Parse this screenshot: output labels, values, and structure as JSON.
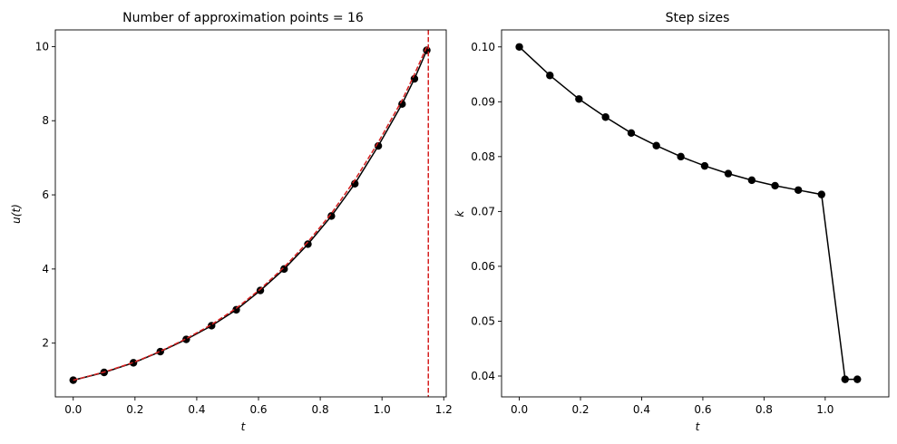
{
  "chart_data": [
    {
      "type": "line",
      "title": "Number of approximation points = 16",
      "xlabel": "t",
      "ylabel": "u(t)",
      "xlim": [
        -0.058,
        1.208
      ],
      "ylim": [
        0.55,
        10.45
      ],
      "xticks": [
        0.0,
        0.2,
        0.4,
        0.6,
        0.8,
        1.0,
        1.2
      ],
      "xtick_labels": [
        "0.0",
        "0.2",
        "0.4",
        "0.6",
        "0.8",
        "1.0",
        "1.2"
      ],
      "yticks": [
        2,
        4,
        6,
        8,
        10
      ],
      "ytick_labels": [
        "2",
        "4",
        "6",
        "8",
        "10"
      ],
      "grid": false,
      "series": [
        {
          "style": "line+markers",
          "color": "#000000",
          "x": [
            0.0,
            0.1,
            0.195,
            0.282,
            0.366,
            0.448,
            0.528,
            0.606,
            0.683,
            0.76,
            0.836,
            0.912,
            0.988,
            1.065,
            1.105,
            1.145
          ],
          "y": [
            1.0,
            1.21,
            1.47,
            1.77,
            2.1,
            2.47,
            2.9,
            3.42,
            4.0,
            4.67,
            5.43,
            6.3,
            7.32,
            8.45,
            9.13,
            9.9
          ]
        },
        {
          "style": "dashed",
          "color": "#d62020",
          "x": [
            0.0,
            0.1,
            0.195,
            0.282,
            0.366,
            0.448,
            0.528,
            0.606,
            0.683,
            0.76,
            0.836,
            0.912,
            0.988,
            1.065,
            1.105,
            1.145
          ],
          "y": [
            1.0,
            1.22,
            1.48,
            1.78,
            2.12,
            2.5,
            2.94,
            3.46,
            4.05,
            4.73,
            5.5,
            6.4,
            7.42,
            8.55,
            9.25,
            10.0
          ]
        }
      ],
      "vline": {
        "x": 1.15,
        "color": "#d62020",
        "style": "dashed"
      }
    },
    {
      "type": "line",
      "title": "Step sizes",
      "xlabel": "t",
      "ylabel": "k",
      "xlim": [
        -0.058,
        1.208
      ],
      "ylim": [
        0.0362,
        0.1031
      ],
      "xticks": [
        0.0,
        0.2,
        0.4,
        0.6,
        0.8,
        1.0
      ],
      "xtick_labels": [
        "0.0",
        "0.2",
        "0.4",
        "0.6",
        "0.8",
        "1.0"
      ],
      "yticks": [
        0.04,
        0.05,
        0.06,
        0.07,
        0.08,
        0.09,
        0.1
      ],
      "ytick_labels": [
        "0.04",
        "0.05",
        "0.06",
        "0.07",
        "0.08",
        "0.09",
        "0.10"
      ],
      "grid": false,
      "series": [
        {
          "style": "line+markers",
          "color": "#000000",
          "x": [
            0.0,
            0.1,
            0.195,
            0.282,
            0.366,
            0.448,
            0.528,
            0.606,
            0.683,
            0.76,
            0.836,
            0.912,
            0.988,
            1.065,
            1.105
          ],
          "y": [
            0.1,
            0.0948,
            0.0905,
            0.0872,
            0.0843,
            0.082,
            0.08,
            0.0783,
            0.0769,
            0.0757,
            0.0747,
            0.0739,
            0.0731,
            0.0394,
            0.0394
          ]
        }
      ]
    }
  ]
}
